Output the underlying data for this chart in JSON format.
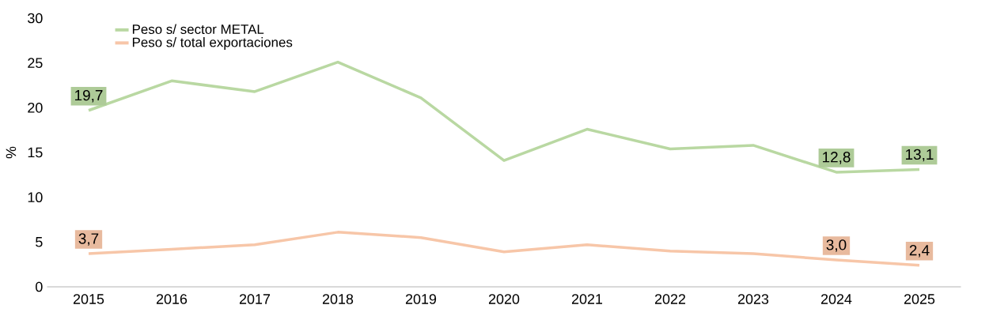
{
  "chart_data": {
    "type": "line",
    "ylabel": "%",
    "categories": [
      "2015",
      "2016",
      "2017",
      "2018",
      "2019",
      "2020",
      "2021",
      "2022",
      "2023",
      "2024",
      "2025"
    ],
    "ylim": [
      0,
      30
    ],
    "yticks": [
      0,
      5,
      10,
      15,
      20,
      25,
      30
    ],
    "legend": "top left",
    "series": [
      {
        "name": "Peso s/ sector METAL",
        "color": "#b9d8a2",
        "values": [
          19.7,
          23.0,
          21.8,
          25.1,
          21.1,
          14.1,
          17.6,
          15.4,
          15.8,
          12.8,
          13.1
        ],
        "value_labels": [
          "19,7",
          null,
          null,
          null,
          null,
          null,
          null,
          null,
          null,
          "12,8",
          "13,1"
        ]
      },
      {
        "name": "Peso s/ total exportaciones",
        "color": "#f7c6a8",
        "values": [
          3.7,
          4.2,
          4.7,
          6.1,
          5.5,
          3.9,
          4.7,
          4.0,
          3.7,
          3.0,
          2.4
        ],
        "value_labels": [
          "3,7",
          null,
          null,
          null,
          null,
          null,
          null,
          null,
          null,
          "3,0",
          "2,4"
        ]
      }
    ]
  }
}
